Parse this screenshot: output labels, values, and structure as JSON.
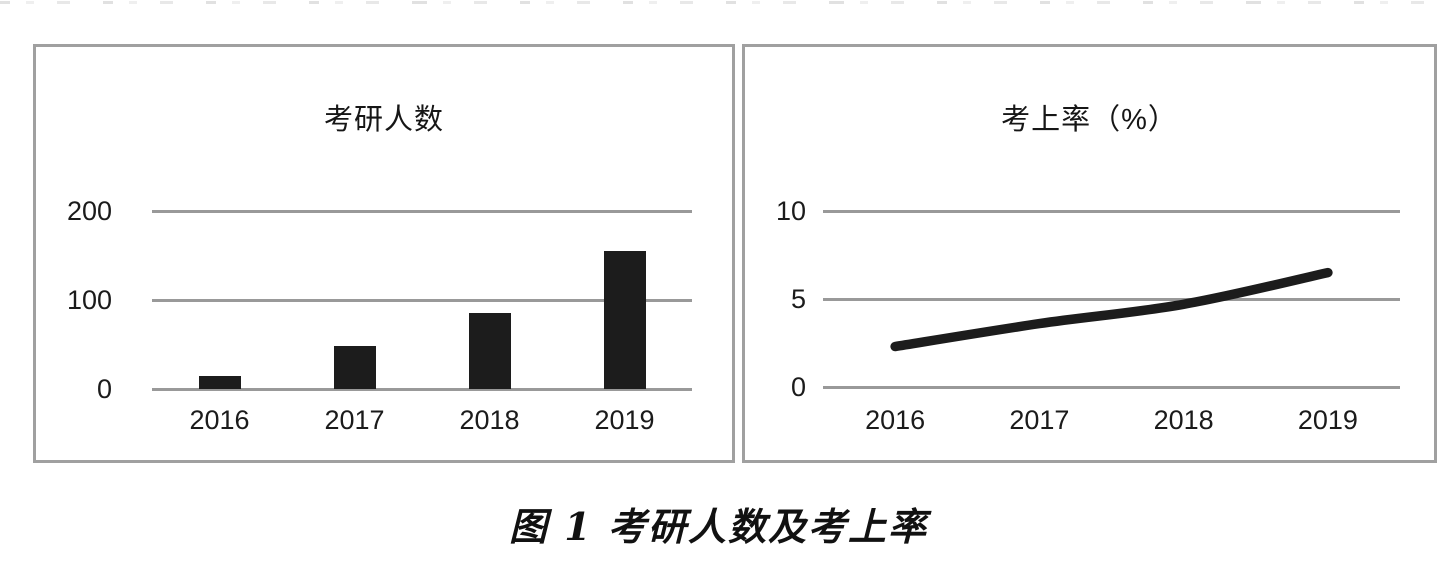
{
  "figure": {
    "caption": "图 1 考研人数及考上率"
  },
  "colors": {
    "bar": "#1c1c1c",
    "line": "#1c1c1c",
    "grid": "#999999",
    "panel_border": "#a0a0a0",
    "text": "#1a1a1a"
  },
  "chart_data": [
    {
      "type": "bar",
      "title": "考研人数",
      "categories": [
        "2016",
        "2017",
        "2018",
        "2019"
      ],
      "values": [
        15,
        48,
        85,
        155
      ],
      "yticks": [
        0,
        100,
        200
      ],
      "ylim": [
        0,
        240
      ],
      "xlabel": "",
      "ylabel": "",
      "grid": true,
      "legend": "none"
    },
    {
      "type": "line",
      "title": "考上率（%）",
      "categories": [
        "2016",
        "2017",
        "2018",
        "2019"
      ],
      "values": [
        2.3,
        3.6,
        4.7,
        6.5
      ],
      "yticks": [
        0,
        5,
        10
      ],
      "ylim": [
        0,
        12.5
      ],
      "xlabel": "",
      "ylabel": "",
      "grid": true,
      "legend": "none"
    }
  ]
}
